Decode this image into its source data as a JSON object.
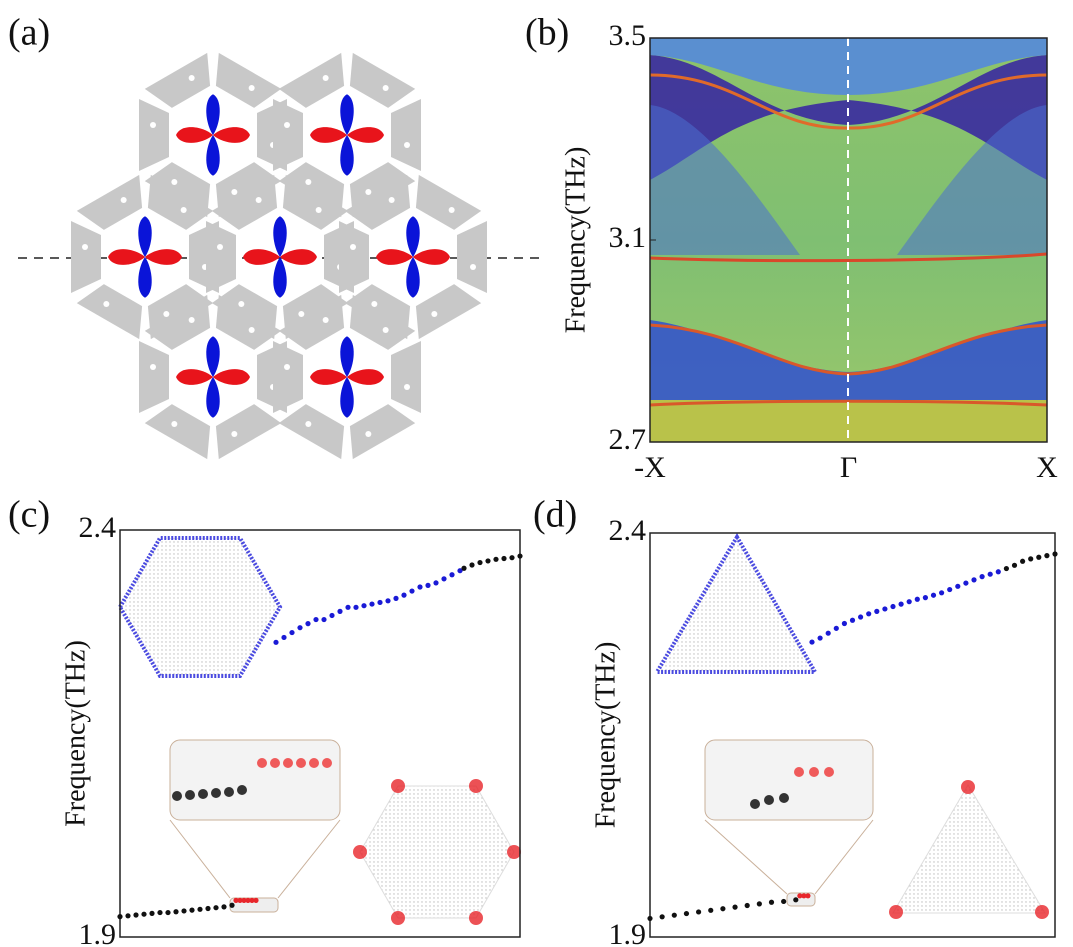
{
  "panels": {
    "a": {
      "label": "(a)"
    }
  },
  "chart_data": [
    {
      "type": "bandmap",
      "label": "(b)",
      "ylabel": "Frequency(THz)",
      "categories": [
        "-X",
        "Γ",
        "X"
      ],
      "ylim": [
        2.7,
        3.5
      ],
      "yticks": [
        2.7,
        3.1,
        3.5
      ]
    },
    {
      "type": "scatter",
      "label": "(c)",
      "ylabel": "Frequency(THz)",
      "xlim": [
        0,
        100
      ],
      "ylim": [
        1.9,
        2.4
      ],
      "yticks": [
        1.9,
        2.4
      ],
      "series": [
        {
          "color": "#111111",
          "x": [
            0,
            2,
            4,
            6,
            8,
            10,
            12,
            14,
            16,
            18,
            20,
            22,
            24,
            26,
            28
          ],
          "values": [
            1.925,
            1.926,
            1.927,
            1.928,
            1.929,
            1.93,
            1.93,
            1.931,
            1.932,
            1.933,
            1.934,
            1.935,
            1.936,
            1.937,
            1.939
          ]
        },
        {
          "color": "#e8262b",
          "x": [
            29,
            30,
            31,
            32,
            33,
            34
          ],
          "values": [
            1.945,
            1.945,
            1.945,
            1.945,
            1.945,
            1.945
          ]
        },
        {
          "color": "#1a1ad6",
          "x": [
            39,
            41,
            43,
            45,
            47,
            49,
            51,
            53,
            55,
            57,
            59,
            61,
            63,
            65,
            67,
            69,
            71,
            73,
            75,
            77,
            79,
            81,
            83,
            85
          ],
          "values": [
            2.262,
            2.268,
            2.274,
            2.28,
            2.285,
            2.29,
            2.29,
            2.295,
            2.3,
            2.305,
            2.305,
            2.307,
            2.309,
            2.311,
            2.313,
            2.316,
            2.32,
            2.325,
            2.33,
            2.332,
            2.335,
            2.34,
            2.345,
            2.35
          ]
        },
        {
          "color": "#111111",
          "x": [
            86,
            88,
            90,
            92,
            94,
            96,
            98,
            100
          ],
          "values": [
            2.353,
            2.357,
            2.36,
            2.362,
            2.364,
            2.365,
            2.366,
            2.368
          ]
        }
      ]
    },
    {
      "type": "scatter",
      "label": "(d)",
      "ylabel": "Frequency(THz)",
      "xlim": [
        0,
        100
      ],
      "ylim": [
        1.9,
        2.4
      ],
      "yticks": [
        1.9,
        2.4
      ],
      "series": [
        {
          "color": "#111111",
          "x": [
            0,
            3,
            6,
            9,
            12,
            15,
            18,
            21,
            24,
            27,
            30,
            33,
            36
          ],
          "values": [
            1.923,
            1.925,
            1.927,
            1.929,
            1.931,
            1.933,
            1.935,
            1.937,
            1.939,
            1.941,
            1.943,
            1.944,
            1.946
          ]
        },
        {
          "color": "#e8262b",
          "x": [
            37,
            38,
            39
          ],
          "values": [
            1.951,
            1.951,
            1.951
          ]
        },
        {
          "color": "#1a1ad6",
          "x": [
            40,
            42,
            44,
            46,
            48,
            50,
            52,
            54,
            56,
            58,
            60,
            62,
            64,
            66,
            68,
            70,
            72,
            74,
            76,
            78,
            80,
            82,
            84,
            86
          ],
          "values": [
            2.265,
            2.27,
            2.276,
            2.282,
            2.288,
            2.292,
            2.296,
            2.3,
            2.303,
            2.306,
            2.309,
            2.312,
            2.315,
            2.318,
            2.32,
            2.323,
            2.326,
            2.33,
            2.334,
            2.338,
            2.342,
            2.346,
            2.349,
            2.352
          ]
        },
        {
          "color": "#111111",
          "x": [
            88,
            90,
            92,
            94,
            96,
            98,
            100
          ],
          "values": [
            2.356,
            2.36,
            2.365,
            2.368,
            2.37,
            2.372,
            2.374
          ]
        }
      ]
    }
  ]
}
